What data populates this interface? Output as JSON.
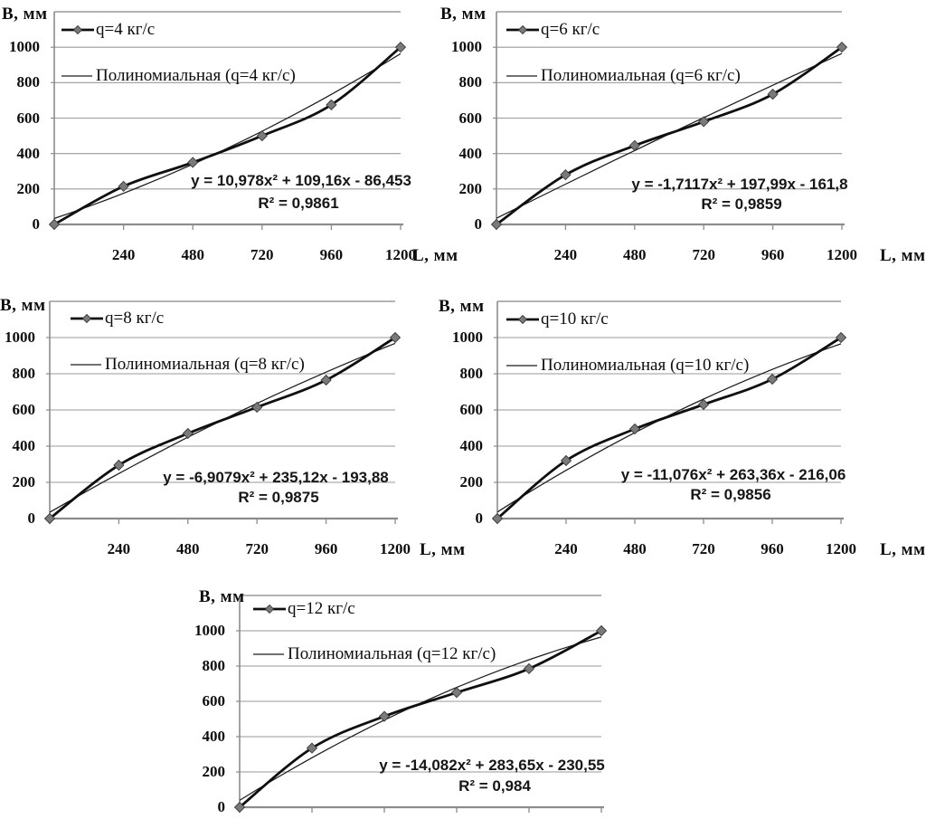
{
  "page": {
    "background": "#ffffff"
  },
  "colors": {
    "series_line": "#0f0f0f",
    "marker_fill": "#7a7a7a",
    "marker_edge": "#3a3a3a",
    "trendline": "#1c1c1c",
    "gridline": "#9a9a9a",
    "axis": "#8c8c8c",
    "text": "#0d0d0d"
  },
  "axis": {
    "y_title": "B, мм",
    "x_title": "L, мм",
    "y_ticks": [
      "0",
      "200",
      "400",
      "600",
      "800",
      "1000"
    ],
    "x_ticks": [
      "240",
      "480",
      "720",
      "960",
      "1200"
    ]
  },
  "chart_data": [
    {
      "type": "line",
      "ylabel": "B, мм",
      "xlabel": "L, мм",
      "ylim": [
        0,
        1200
      ],
      "grid": true,
      "legend_position": "top-left-inside",
      "x": [
        0,
        240,
        480,
        720,
        960,
        1200
      ],
      "legend": [
        "q=4 кг/с",
        "Полиномиальная (q=4 кг/с)"
      ],
      "series": [
        {
          "name": "q=4 кг/с",
          "values": [
            0,
            215,
            350,
            500,
            675,
            1000
          ]
        }
      ],
      "trend": {
        "coeffs": [
          10.978,
          109.16,
          -86.453
        ],
        "equation": "y = 10,978x² + 109,16x - 86,453",
        "r2": "R² = 0,9861"
      }
    },
    {
      "type": "line",
      "ylabel": "B, мм",
      "xlabel": "L, мм",
      "ylim": [
        0,
        1200
      ],
      "grid": true,
      "legend_position": "top-left-inside",
      "x": [
        0,
        240,
        480,
        720,
        960,
        1200
      ],
      "legend": [
        "q=6 кг/с",
        "Полиномиальная (q=6 кг/с)"
      ],
      "series": [
        {
          "name": "q=6 кг/с",
          "values": [
            0,
            280,
            445,
            580,
            735,
            1000
          ]
        }
      ],
      "trend": {
        "coeffs": [
          -1.7117,
          197.99,
          -161.8
        ],
        "equation": "y = -1,7117x² + 197,99x - 161,8",
        "r2": "R² = 0,9859"
      }
    },
    {
      "type": "line",
      "ylabel": "B, мм",
      "xlabel": "L, мм",
      "ylim": [
        0,
        1200
      ],
      "grid": true,
      "legend_position": "top-left-inside",
      "x": [
        0,
        240,
        480,
        720,
        960,
        1200
      ],
      "legend": [
        "q=8 кг/с",
        "Полиномиальная (q=8 кг/с)"
      ],
      "series": [
        {
          "name": "q=8 кг/с",
          "values": [
            0,
            295,
            470,
            615,
            765,
            1000
          ]
        }
      ],
      "trend": {
        "coeffs": [
          -6.9079,
          235.12,
          -193.88
        ],
        "equation": "y = -6,9079x² + 235,12x - 193,88",
        "r2": "R² = 0,9875"
      }
    },
    {
      "type": "line",
      "ylabel": "B, мм",
      "xlabel": "L, мм",
      "ylim": [
        0,
        1200
      ],
      "grid": true,
      "legend_position": "top-left-inside",
      "x": [
        0,
        240,
        480,
        720,
        960,
        1200
      ],
      "legend": [
        "q=10 кг/с",
        "Полиномиальная (q=10 кг/с)"
      ],
      "series": [
        {
          "name": "q=10 кг/с",
          "values": [
            0,
            320,
            495,
            630,
            770,
            1000
          ]
        }
      ],
      "trend": {
        "coeffs": [
          -11.076,
          263.36,
          -216.06
        ],
        "equation": "y = -11,076x² + 263,36x - 216,06",
        "r2": "R² = 0,9856"
      }
    },
    {
      "type": "line",
      "ylabel": "B, мм",
      "xlabel": "",
      "ylim": [
        0,
        1200
      ],
      "grid": true,
      "legend_position": "top-left-inside",
      "x": [
        0,
        240,
        480,
        720,
        960,
        1200
      ],
      "legend": [
        "q=12 кг/с",
        "Полиномиальная (q=12 кг/с)"
      ],
      "series": [
        {
          "name": "q=12 кг/с",
          "values": [
            0,
            335,
            515,
            650,
            785,
            1000
          ]
        }
      ],
      "trend": {
        "coeffs": [
          -14.082,
          283.65,
          -230.55
        ],
        "equation": "y = -14,082x² + 283,65x - 230,55",
        "r2": "R² = 0,984"
      }
    }
  ]
}
